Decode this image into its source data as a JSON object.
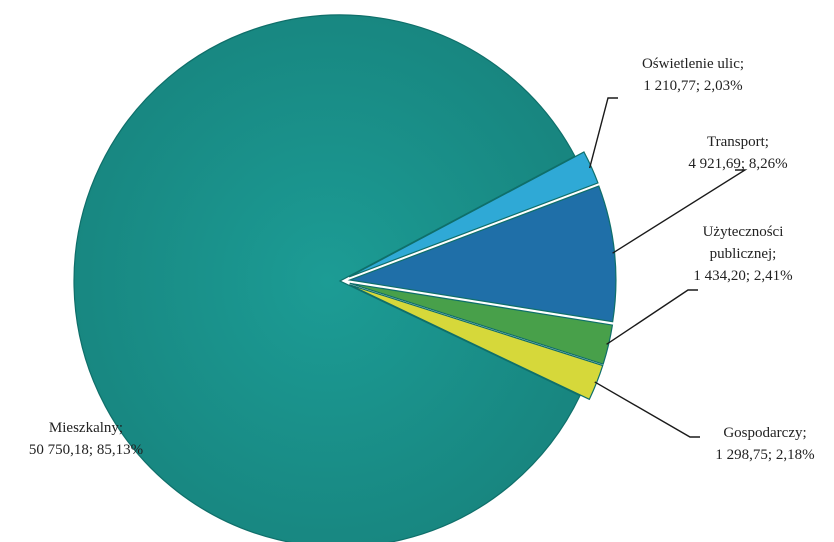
{
  "chart_data": {
    "type": "pie",
    "title": "",
    "slices": [
      {
        "name": "Oświetlenie ulic",
        "value": 1210.77,
        "percent": 2.03,
        "label_lines": [
          "Oświetlenie ulic;",
          "1 210,77; 2,03%"
        ],
        "color": "#2fa9d6"
      },
      {
        "name": "Transport",
        "value": 4921.69,
        "percent": 8.26,
        "label_lines": [
          "Transport;",
          "4 921,69; 8,26%"
        ],
        "color": "#1f6fa8"
      },
      {
        "name": "Użyteczności publicznej",
        "value": 1434.2,
        "percent": 2.41,
        "label_lines": [
          "Użyteczności",
          "publicznej;",
          "1 434,20; 2,41%"
        ],
        "color": "#48a04a"
      },
      {
        "name": "Gospodarczy",
        "value": 1298.75,
        "percent": 2.18,
        "label_lines": [
          "Gospodarczy;",
          "1 298,75; 2,18%"
        ],
        "color": "#d6d83a"
      },
      {
        "name": "Mieszkalny",
        "value": 50750.18,
        "percent": 85.13,
        "label_lines": [
          "Mieszkalny;",
          "50 750,18; 85,13%"
        ],
        "color": "#1d8c86"
      }
    ],
    "legend": "none"
  }
}
